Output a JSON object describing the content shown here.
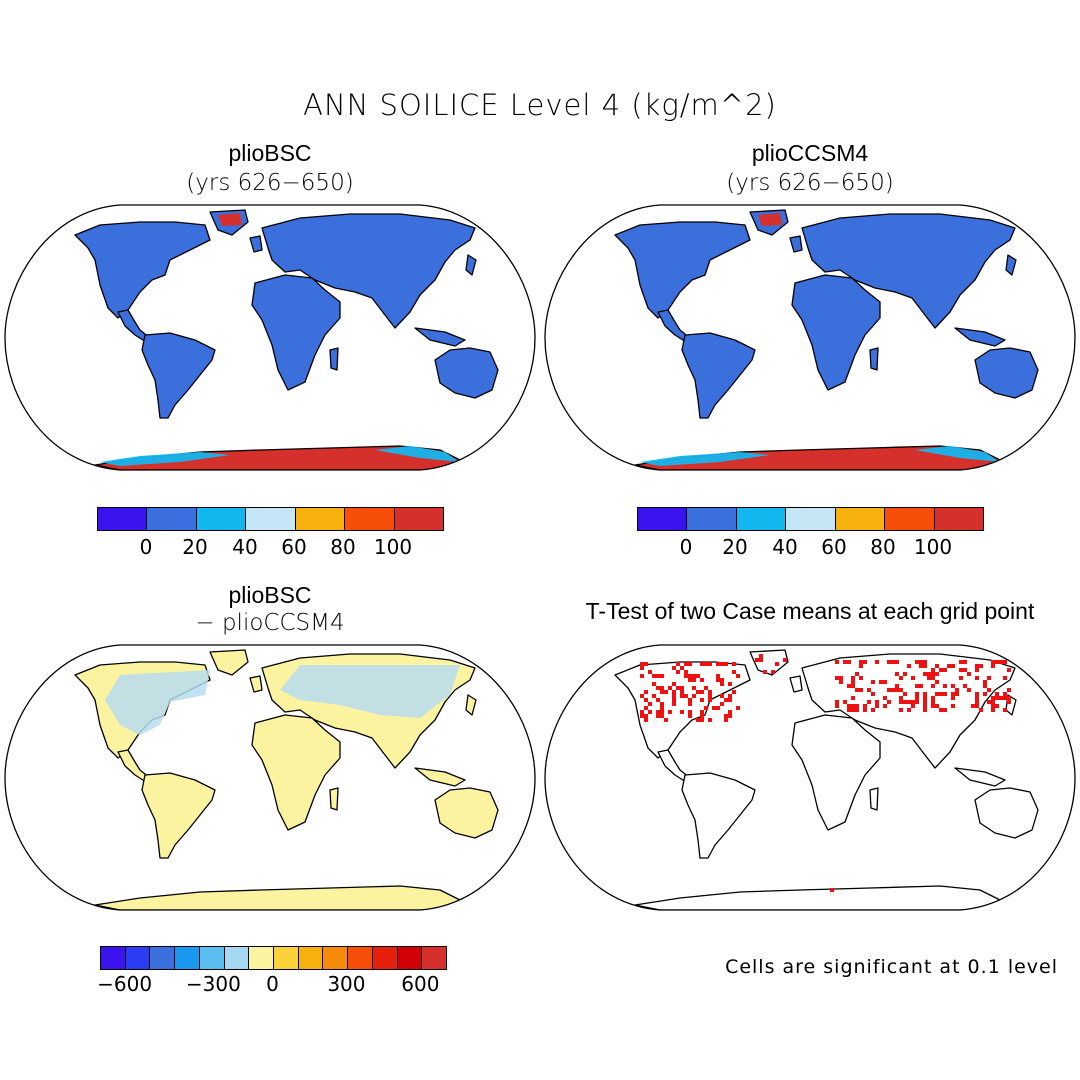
{
  "title": "ANN SOILICE Level 4 (kg/m^2)",
  "panels": {
    "top_left": {
      "title": "plioBSC",
      "subtitle": "(yrs 626−650)"
    },
    "top_right": {
      "title": "plioCCSM4",
      "subtitle": "(yrs 626−650)"
    },
    "bottom_left": {
      "title": "plioBSC",
      "subtitle": "− plioCCSM4"
    },
    "bottom_right": {
      "title": "T-Test of two Case means at each grid point"
    }
  },
  "colorbars": {
    "abs": {
      "colors": [
        "#3a13ef",
        "#3a6fdd",
        "#13b7f0",
        "#c4e6f5",
        "#f7b10f",
        "#f74f0a",
        "#d5302b"
      ],
      "labels": [
        "0",
        "20",
        "40",
        "60",
        "80",
        "100"
      ]
    },
    "diff": {
      "colors": [
        "#3a13ef",
        "#2a3df5",
        "#3a6fdd",
        "#1a98ef",
        "#5bbef0",
        "#a7d8f2",
        "#fbf3a0",
        "#fbd23a",
        "#f7b10f",
        "#f78a0a",
        "#f74f0a",
        "#e5200c",
        "#d20006",
        "#d5302b"
      ],
      "labels": [
        "−600",
        "−300",
        "0",
        "300",
        "600"
      ]
    }
  },
  "map_colors": {
    "land_abs": "#3b6fdc",
    "ice_abs": "#d5302b",
    "coast_abs": "#14b5ee",
    "land_diff": "#fbf3a0",
    "patch_diff": "#b7dcee",
    "signif": "#ee1111"
  },
  "footnote": "Cells are significant at 0.1 level"
}
